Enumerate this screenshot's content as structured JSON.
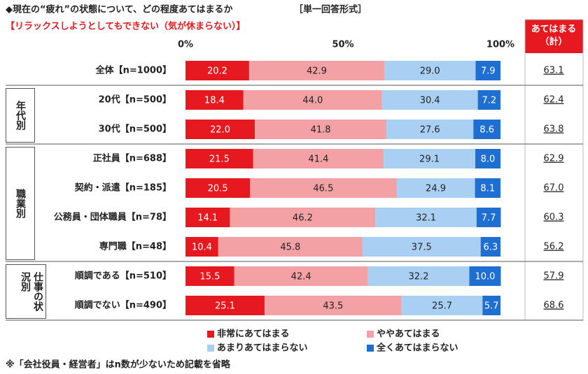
{
  "chart_data": {
    "type": "stacked-bar-horizontal",
    "title": "◆現在の“疲れ”の状態について、どの程度あてはまるか",
    "answer_format": "［単一回答形式］",
    "subtitle": "【リラックスしようとしてもできない（気が休まらない）】",
    "groups": [
      {
        "label": null,
        "categories": [
          "全体【n=1000】"
        ]
      },
      {
        "label": "年代別",
        "categories": [
          "20代【n=500】",
          "30代【n=500】"
        ]
      },
      {
        "label": "職業別",
        "categories": [
          "正社員【n=688】",
          "契約・派遣【n=185】",
          "公務員・団体職員【n=78】",
          "専門職【n=48】"
        ]
      },
      {
        "label": "仕事の状況別",
        "categories": [
          "順調である【n=510】",
          "順調でない【n=490】"
        ]
      }
    ],
    "series": [
      {
        "name": "非常にあてはまる",
        "color": "#e5191f",
        "label_color": "#ffffff",
        "values": [
          20.2,
          18.4,
          22.0,
          21.5,
          20.5,
          14.1,
          10.4,
          15.5,
          25.1
        ],
        "value_labels": [
          "20.2",
          "18.4",
          "22.0",
          "21.5",
          "20.5",
          "14.1",
          "10.4",
          "15.5",
          "25.1"
        ]
      },
      {
        "name": "ややあてはまる",
        "color": "#f3a1a4",
        "label_color": "#222222",
        "values": [
          42.9,
          44.0,
          41.8,
          41.4,
          46.5,
          46.2,
          45.8,
          42.4,
          43.5
        ],
        "value_labels": [
          "42.9",
          "44.0",
          "41.8",
          "41.4",
          "46.5",
          "46.2",
          "45.8",
          "42.4",
          "43.5"
        ]
      },
      {
        "name": "あまりあてはまらない",
        "color": "#a9cff3",
        "label_color": "#222222",
        "values": [
          29.0,
          30.4,
          27.6,
          29.1,
          24.9,
          32.1,
          37.5,
          32.2,
          25.7
        ],
        "value_labels": [
          "29.0",
          "30.4",
          "27.6",
          "29.1",
          "24.9",
          "32.1",
          "37.5",
          "32.2",
          "25.7"
        ]
      },
      {
        "name": "全くあてはまらない",
        "color": "#1f6fd3",
        "label_color": "#ffffff",
        "values": [
          7.9,
          7.2,
          8.6,
          8.0,
          8.1,
          7.7,
          6.3,
          10.0,
          5.7
        ],
        "value_labels": [
          "7.9",
          "7.2",
          "8.6",
          "8.0",
          "8.1",
          "7.7",
          "6.3",
          "10.0",
          "5.7"
        ]
      }
    ],
    "totals": {
      "title_lines": [
        "あてはまる",
        "（計）"
      ],
      "color": "#e5191f",
      "values": [
        63.1,
        62.4,
        63.8,
        62.9,
        67.0,
        60.3,
        56.2,
        57.9,
        68.6
      ],
      "value_labels": [
        "63.1",
        "62.4",
        "63.8",
        "62.9",
        "67.0",
        "60.3",
        "56.2",
        "57.9",
        "68.6"
      ]
    },
    "xlim": [
      0,
      100
    ],
    "xticks": [
      {
        "value": 0,
        "label": "0%"
      },
      {
        "value": 50,
        "label": "50%"
      },
      {
        "value": 100,
        "label": "100%"
      }
    ],
    "footnote": "※「会社役員・経営者」はn数が少ないため記載を省略"
  }
}
